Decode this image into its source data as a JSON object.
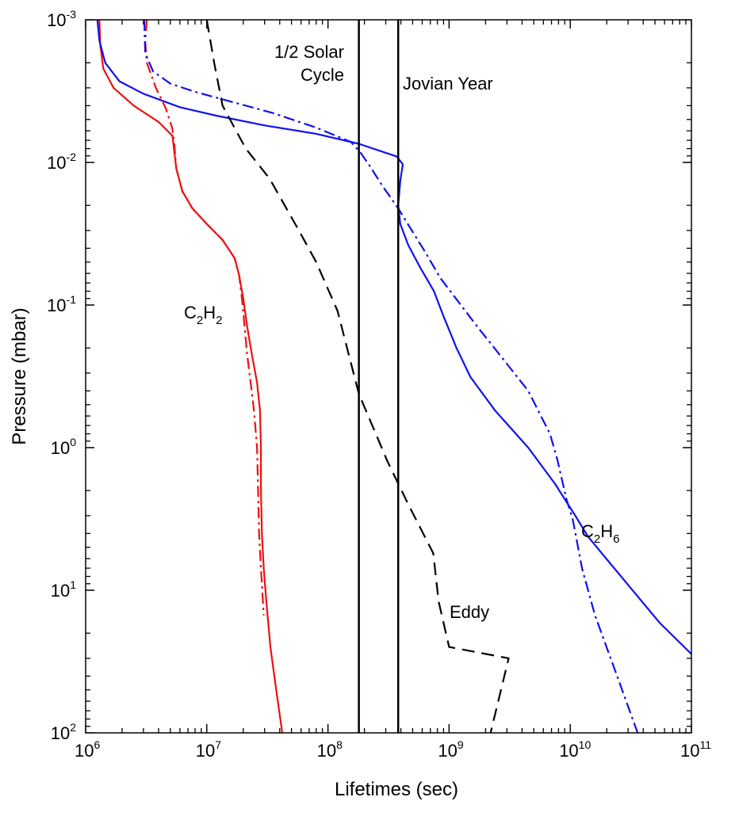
{
  "chart_data": {
    "type": "line",
    "xlabel": "Lifetimes (sec)",
    "ylabel": "Pressure (mbar)",
    "x_scale": "log",
    "y_scale": "log",
    "y_inverted": true,
    "xlim": [
      1000000.0,
      100000000000.0
    ],
    "ylim": [
      0.001,
      100
    ],
    "x_ticks": [
      {
        "base": "10",
        "exp": "6"
      },
      {
        "base": "10",
        "exp": "7"
      },
      {
        "base": "10",
        "exp": "8"
      },
      {
        "base": "10",
        "exp": "9"
      },
      {
        "base": "10",
        "exp": "10"
      },
      {
        "base": "10",
        "exp": "11"
      }
    ],
    "y_ticks": [
      {
        "base": "10",
        "exp": "-3"
      },
      {
        "base": "10",
        "exp": "-2"
      },
      {
        "base": "10",
        "exp": "-1"
      },
      {
        "base": "10",
        "exp": "0"
      },
      {
        "base": "10",
        "exp": "1"
      },
      {
        "base": "10",
        "exp": "2"
      }
    ],
    "colors": {
      "c2h2": "#ee1111",
      "c2h6": "#1111ee",
      "eddy": "#000000",
      "reference": "#000000"
    },
    "series": [
      {
        "name": "C2H2 solid",
        "species": "C2H2",
        "style": "solid",
        "color": "#ee1111",
        "points": [
          [
            1300000.0,
            0.001
          ],
          [
            1320000.0,
            0.0015
          ],
          [
            1400000.0,
            0.0022
          ],
          [
            1700000.0,
            0.003
          ],
          [
            2500000.0,
            0.004
          ],
          [
            4000000.0,
            0.0052
          ],
          [
            5200000.0,
            0.0065
          ],
          [
            5400000.0,
            0.0085
          ],
          [
            5600000.0,
            0.011
          ],
          [
            6300000.0,
            0.016
          ],
          [
            7600000.0,
            0.021
          ],
          [
            10000000.0,
            0.027
          ],
          [
            13500000.0,
            0.035
          ],
          [
            17000000.0,
            0.047
          ],
          [
            18500000.0,
            0.062
          ],
          [
            20000000.0,
            0.09
          ],
          [
            21500000.0,
            0.14
          ],
          [
            23500000.0,
            0.22
          ],
          [
            26000000.0,
            0.35
          ],
          [
            27500000.0,
            0.55
          ],
          [
            28000000.0,
            1.0
          ],
          [
            28000000.0,
            2.0
          ],
          [
            28500000.0,
            4.0
          ],
          [
            29500000.0,
            7.0
          ],
          [
            31000000.0,
            12
          ],
          [
            33500000.0,
            25
          ],
          [
            38000000.0,
            55
          ],
          [
            42000000.0,
            100
          ]
        ]
      },
      {
        "name": "C2H2 dash-dot",
        "species": "C2H2",
        "style": "dashdot",
        "color": "#ee1111",
        "points": [
          [
            3200000.0,
            0.001
          ],
          [
            3100000.0,
            0.0014
          ],
          [
            3200000.0,
            0.002
          ],
          [
            3800000.0,
            0.003
          ],
          [
            4600000.0,
            0.0042
          ],
          [
            5200000.0,
            0.0058
          ],
          [
            5400000.0,
            0.0075
          ],
          [
            5600000.0,
            0.011
          ],
          [
            6300000.0,
            0.016
          ],
          [
            7600000.0,
            0.021
          ],
          [
            10000000.0,
            0.027
          ],
          [
            13500000.0,
            0.035
          ],
          [
            17000000.0,
            0.047
          ],
          [
            18500000.0,
            0.062
          ],
          [
            19500000.0,
            0.09
          ],
          [
            20500000.0,
            0.14
          ],
          [
            21500000.0,
            0.22
          ],
          [
            23000000.0,
            0.35
          ],
          [
            24500000.0,
            0.55
          ],
          [
            26000000.0,
            1.0
          ],
          [
            26500000.0,
            2.0
          ],
          [
            27000000.0,
            4.0
          ],
          [
            28000000.0,
            7.0
          ],
          [
            29500000.0,
            15
          ]
        ]
      },
      {
        "name": "C2H6 solid",
        "species": "C2H6",
        "style": "solid",
        "color": "#1111ee",
        "points": [
          [
            1250000.0,
            0.001
          ],
          [
            1300000.0,
            0.0014
          ],
          [
            1450000.0,
            0.002
          ],
          [
            1900000.0,
            0.0027
          ],
          [
            3000000.0,
            0.0033
          ],
          [
            6000000.0,
            0.0041
          ],
          [
            12000000.0,
            0.0047
          ],
          [
            30000000.0,
            0.0055
          ],
          [
            80000000.0,
            0.0063
          ],
          [
            180000000.0,
            0.0074
          ],
          [
            370000000.0,
            0.0091
          ],
          [
            415000000.0,
            0.0103
          ],
          [
            395000000.0,
            0.0135
          ],
          [
            380000000.0,
            0.02
          ],
          [
            395000000.0,
            0.027
          ],
          [
            460000000.0,
            0.038
          ],
          [
            580000000.0,
            0.055
          ],
          [
            750000000.0,
            0.08
          ],
          [
            900000000.0,
            0.12
          ],
          [
            1150000000.0,
            0.2
          ],
          [
            1500000000.0,
            0.32
          ],
          [
            2400000000.0,
            0.55
          ],
          [
            4500000000.0,
            1.0
          ],
          [
            7500000000.0,
            1.8
          ],
          [
            11000000000.0,
            3.0
          ],
          [
            14000000000.0,
            4.2
          ],
          [
            23000000000.0,
            7.0
          ],
          [
            55000000000.0,
            17
          ],
          [
            100000000000.0,
            28
          ]
        ]
      },
      {
        "name": "C2H6 dash-dot",
        "species": "C2H6",
        "style": "dashdot",
        "color": "#1111ee",
        "points": [
          [
            3050000.0,
            0.001
          ],
          [
            3100000.0,
            0.0017
          ],
          [
            3600000.0,
            0.0023
          ],
          [
            5000000.0,
            0.0028
          ],
          [
            8000000.0,
            0.0032
          ],
          [
            15000000.0,
            0.0037
          ],
          [
            35000000.0,
            0.0045
          ],
          [
            80000000.0,
            0.0057
          ],
          [
            155000000.0,
            0.0072
          ],
          [
            185000000.0,
            0.0085
          ],
          [
            220000000.0,
            0.0105
          ],
          [
            280000000.0,
            0.0145
          ],
          [
            380000000.0,
            0.021
          ],
          [
            480000000.0,
            0.029
          ],
          [
            630000000.0,
            0.042
          ],
          [
            850000000.0,
            0.065
          ],
          [
            1250000000.0,
            0.1
          ],
          [
            1800000000.0,
            0.15
          ],
          [
            2800000000.0,
            0.24
          ],
          [
            4500000000.0,
            0.4
          ],
          [
            6800000000.0,
            0.8
          ],
          [
            7800000000.0,
            1.2
          ],
          [
            9300000000.0,
            2.3
          ],
          [
            10500000000.0,
            3.2
          ],
          [
            12500000000.0,
            7.0
          ],
          [
            16000000000.0,
            15
          ],
          [
            23000000000.0,
            35
          ],
          [
            36000000000.0,
            100
          ]
        ]
      },
      {
        "name": "Eddy",
        "species": "Eddy",
        "style": "dashed",
        "color": "#000000",
        "points": [
          [
            10000000.0,
            0.001
          ],
          [
            11500000.0,
            0.002
          ],
          [
            13500000.0,
            0.004
          ],
          [
            21000000.0,
            0.008
          ],
          [
            33000000.0,
            0.013
          ],
          [
            55000000.0,
            0.028
          ],
          [
            80000000.0,
            0.05
          ],
          [
            120000000.0,
            0.11
          ],
          [
            180000000.0,
            0.42
          ],
          [
            310000000.0,
            1.25
          ],
          [
            460000000.0,
            2.5
          ],
          [
            740000000.0,
            5.5
          ],
          [
            820000000.0,
            12
          ],
          [
            1000000000.0,
            25
          ],
          [
            3100000000.0,
            30
          ],
          [
            2200000000.0,
            100
          ]
        ]
      },
      {
        "name": "1/2 Solar Cycle",
        "species": "reference",
        "style": "vertical",
        "color": "#000000",
        "points": [
          [
            180000000.0,
            0.001
          ],
          [
            180000000.0,
            100
          ]
        ]
      },
      {
        "name": "Jovian Year",
        "species": "reference",
        "style": "vertical",
        "color": "#000000",
        "points": [
          [
            380000000.0,
            0.001
          ],
          [
            380000000.0,
            100
          ]
        ]
      }
    ],
    "annotations": {
      "solar_line1": "1/2 Solar",
      "solar_line2": "Cycle",
      "jovian": "Jovian Year",
      "eddy": "Eddy",
      "c2h2": {
        "main1": "C",
        "sub1": "2",
        "main2": "H",
        "sub2": "2"
      },
      "c2h6": {
        "main1": "C",
        "sub1": "2",
        "main2": "H",
        "sub2": "6"
      }
    }
  }
}
